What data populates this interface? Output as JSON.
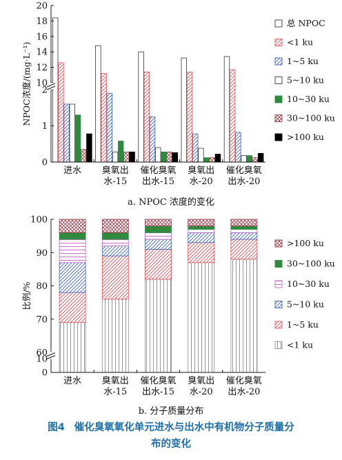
{
  "chart_data": [
    {
      "type": "bar",
      "title": "",
      "caption": "a. NPOC 浓度的变化",
      "ylabel": "NPOC浓度/(mg·L⁻¹)",
      "ylim": [
        0,
        20
      ],
      "axis_break": [
        2,
        10
      ],
      "yticks_lower": [
        "0",
        "1",
        "2"
      ],
      "yticks_upper": [
        "10",
        "12",
        "14",
        "16",
        "18",
        "20"
      ],
      "categories": [
        [
          "进水"
        ],
        [
          "臭氧出",
          "水-15"
        ],
        [
          "催化臭氧",
          "出水-15"
        ],
        [
          "臭氧出",
          "水-20"
        ],
        [
          "催化臭氧",
          "出水-20"
        ]
      ],
      "legend": [
        "总 NPOC",
        "<1 ku",
        "1~5 ku",
        "5~10 ku",
        "10~30 ku",
        "30~100 ku",
        ">100 ku"
      ],
      "series": [
        {
          "name": "总 NPOC",
          "color": "#555555",
          "pattern": "none",
          "values": [
            18.4,
            14.8,
            14.0,
            13.2,
            13.4
          ]
        },
        {
          "name": "<1 ku",
          "color": "#e0525a",
          "pattern": "diag",
          "values": [
            12.6,
            11.2,
            11.4,
            11.4,
            11.7
          ]
        },
        {
          "name": "1~5 ku",
          "color": "#3d63b8",
          "pattern": "diag",
          "values": [
            1.6,
            1.9,
            1.25,
            0.78,
            0.82
          ]
        },
        {
          "name": "5~10 ku",
          "color": "#c560c8",
          "pattern": "none",
          "values": [
            1.6,
            0.28,
            0.4,
            0.38,
            0.18
          ]
        },
        {
          "name": "10~30 ku",
          "color": "#2f8a3e",
          "pattern": "solid",
          "values": [
            1.3,
            0.58,
            0.28,
            0.12,
            0.18
          ]
        },
        {
          "name": "30~100 ku",
          "color": "#9a3a4a",
          "pattern": "cross",
          "values": [
            0.35,
            0.28,
            0.28,
            0.12,
            0.12
          ]
        },
        {
          "name": ">100 ku",
          "color": "#000000",
          "pattern": "solid",
          "values": [
            0.78,
            0.28,
            0.26,
            0.22,
            0.24
          ]
        }
      ]
    },
    {
      "type": "stacked_bar",
      "title": "",
      "caption": "b. 分子质量分布",
      "ylabel": "比例/%",
      "ylim": [
        0,
        100
      ],
      "axis_break": [
        10,
        60
      ],
      "yticks_lower": [
        "0",
        "10"
      ],
      "yticks_upper": [
        "60",
        "70",
        "80",
        "90",
        "100"
      ],
      "categories": [
        [
          "进水"
        ],
        [
          "臭氧出",
          "水-15"
        ],
        [
          "催化臭氧",
          "出水-15"
        ],
        [
          "臭氧出",
          "水-20"
        ],
        [
          "催化臭氧",
          "出水-20"
        ]
      ],
      "legend": [
        ">100 ku",
        "30~100 ku",
        "10~30 ku",
        "5~10 ku",
        "1~5 ku",
        "<1 ku"
      ],
      "series": [
        {
          "name": "<1 ku",
          "color": "#8a8a8a",
          "pattern": "vline",
          "values": [
            69,
            76,
            82,
            87,
            88
          ]
        },
        {
          "name": "1~5 ku",
          "color": "#e0525a",
          "pattern": "diag",
          "values": [
            9,
            13,
            9,
            6,
            6
          ]
        },
        {
          "name": "5~10 ku",
          "color": "#3d63b8",
          "pattern": "diag",
          "values": [
            9,
            3,
            3,
            3,
            2
          ]
        },
        {
          "name": "10~30 ku",
          "color": "#c560c8",
          "pattern": "hline",
          "values": [
            7,
            2,
            2,
            1,
            1
          ]
        },
        {
          "name": "30~100 ku",
          "color": "#2f8a3e",
          "pattern": "solid",
          "values": [
            2,
            2,
            2,
            1,
            1
          ]
        },
        {
          "name": ">100 ku",
          "color": "#9a3a4a",
          "pattern": "cross",
          "values": [
            4,
            4,
            2,
            2,
            2
          ]
        }
      ]
    }
  ],
  "figure_caption": {
    "number": "图4",
    "line1": "催化臭氧氧化单元进水与出水中有机物分子质量分",
    "line2": "布的变化"
  }
}
